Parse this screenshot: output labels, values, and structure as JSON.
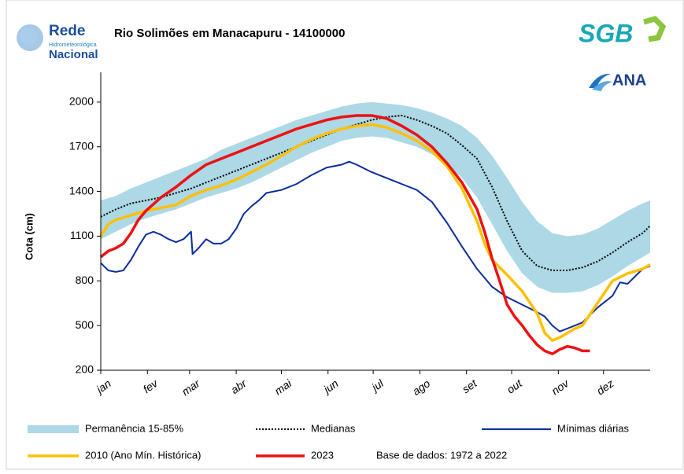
{
  "chart_data": {
    "type": "line",
    "title": "Rio Solimões em Manacapuru - 14100000",
    "ylabel": "Cota (cm)",
    "logos": {
      "rede": "Rede",
      "rede_sub": "Hidrometeorológica",
      "rede_bottom": "Nacional",
      "sgb": "SGB",
      "ana": "ANA"
    },
    "annotation": "Base de dados: 1972 a 2022",
    "xlim": [
      0,
      365
    ],
    "xticks": [
      {
        "value": 0,
        "label": "jan"
      },
      {
        "value": 31,
        "label": "fev"
      },
      {
        "value": 59,
        "label": "mar"
      },
      {
        "value": 90,
        "label": "abr"
      },
      {
        "value": 120,
        "label": "mai"
      },
      {
        "value": 151,
        "label": "jun"
      },
      {
        "value": 181,
        "label": "jul"
      },
      {
        "value": 212,
        "label": "ago"
      },
      {
        "value": 243,
        "label": "set"
      },
      {
        "value": 273,
        "label": "out"
      },
      {
        "value": 304,
        "label": "nov"
      },
      {
        "value": 334,
        "label": "dez"
      }
    ],
    "ylim": [
      200,
      2200
    ],
    "yticks": [
      200,
      500,
      800,
      1100,
      1400,
      1700,
      2000
    ],
    "series": [
      {
        "name": "Permanência 15-85%",
        "color": "#add8e6",
        "style": "band",
        "x": [
          0,
          10,
          20,
          30,
          40,
          50,
          60,
          70,
          80,
          90,
          100,
          110,
          120,
          130,
          140,
          150,
          160,
          170,
          180,
          190,
          200,
          210,
          220,
          230,
          240,
          250,
          260,
          270,
          280,
          290,
          300,
          310,
          320,
          330,
          340,
          350,
          360,
          365
        ],
        "low": [
          1080,
          1130,
          1180,
          1220,
          1250,
          1280,
          1320,
          1360,
          1390,
          1420,
          1460,
          1510,
          1560,
          1610,
          1660,
          1700,
          1740,
          1760,
          1770,
          1760,
          1730,
          1700,
          1650,
          1580,
          1490,
          1360,
          1180,
          1000,
          850,
          760,
          720,
          720,
          730,
          770,
          830,
          900,
          960,
          990
        ],
        "high": [
          1340,
          1370,
          1420,
          1460,
          1500,
          1540,
          1580,
          1620,
          1680,
          1720,
          1760,
          1800,
          1840,
          1880,
          1910,
          1940,
          1970,
          1990,
          2000,
          1990,
          1980,
          1960,
          1930,
          1890,
          1840,
          1760,
          1640,
          1490,
          1330,
          1200,
          1120,
          1100,
          1110,
          1150,
          1210,
          1270,
          1320,
          1340
        ]
      },
      {
        "name": "Medianas",
        "color": "#000000",
        "style": "dotted",
        "x": [
          0,
          10,
          20,
          30,
          40,
          50,
          60,
          70,
          80,
          90,
          100,
          110,
          120,
          130,
          140,
          150,
          160,
          170,
          180,
          190,
          200,
          210,
          220,
          230,
          240,
          250,
          260,
          270,
          280,
          290,
          300,
          310,
          320,
          330,
          340,
          350,
          360,
          365
        ],
        "values": [
          1230,
          1280,
          1320,
          1340,
          1360,
          1390,
          1420,
          1460,
          1500,
          1540,
          1580,
          1620,
          1660,
          1700,
          1740,
          1780,
          1820,
          1850,
          1880,
          1900,
          1910,
          1880,
          1840,
          1790,
          1710,
          1620,
          1430,
          1200,
          1000,
          900,
          870,
          870,
          890,
          930,
          990,
          1060,
          1120,
          1170
        ]
      },
      {
        "name": "Mínimas diárias",
        "color": "#0a2d9e",
        "style": "solid",
        "x": [
          0,
          5,
          10,
          15,
          20,
          25,
          30,
          35,
          40,
          45,
          50,
          55,
          60,
          61,
          65,
          70,
          75,
          80,
          85,
          90,
          95,
          100,
          105,
          110,
          120,
          130,
          140,
          150,
          160,
          165,
          170,
          180,
          190,
          200,
          210,
          220,
          230,
          240,
          250,
          260,
          270,
          280,
          290,
          295,
          300,
          305,
          310,
          320,
          330,
          340,
          345,
          350,
          355,
          360,
          365
        ],
        "values": [
          920,
          870,
          860,
          870,
          940,
          1030,
          1110,
          1130,
          1110,
          1080,
          1060,
          1080,
          1130,
          980,
          1020,
          1080,
          1050,
          1050,
          1080,
          1150,
          1250,
          1300,
          1340,
          1390,
          1410,
          1450,
          1510,
          1560,
          1580,
          1600,
          1580,
          1530,
          1490,
          1450,
          1410,
          1330,
          1190,
          1030,
          880,
          760,
          690,
          640,
          590,
          560,
          500,
          460,
          480,
          520,
          620,
          700,
          790,
          780,
          830,
          880,
          900
        ]
      },
      {
        "name": "2010 (Ano Mín. Histórica)",
        "color": "#ffc000",
        "style": "thick",
        "x": [
          0,
          5,
          10,
          20,
          30,
          40,
          50,
          60,
          70,
          80,
          90,
          100,
          110,
          120,
          130,
          140,
          150,
          160,
          170,
          180,
          190,
          200,
          210,
          220,
          230,
          240,
          250,
          255,
          260,
          270,
          280,
          290,
          295,
          300,
          305,
          310,
          315,
          320,
          330,
          340,
          350,
          360,
          365
        ],
        "values": [
          1100,
          1180,
          1210,
          1240,
          1270,
          1290,
          1310,
          1370,
          1410,
          1440,
          1480,
          1530,
          1580,
          1640,
          1700,
          1750,
          1790,
          1820,
          1840,
          1850,
          1830,
          1790,
          1740,
          1670,
          1570,
          1420,
          1200,
          1050,
          940,
          840,
          730,
          580,
          450,
          400,
          420,
          450,
          480,
          500,
          650,
          800,
          850,
          880,
          910
        ]
      },
      {
        "name": "2023",
        "color": "#ee1111",
        "style": "thick",
        "x": [
          0,
          5,
          10,
          15,
          20,
          25,
          30,
          40,
          50,
          60,
          70,
          80,
          90,
          100,
          110,
          120,
          130,
          140,
          150,
          160,
          170,
          180,
          190,
          200,
          210,
          220,
          230,
          240,
          250,
          255,
          260,
          265,
          270,
          275,
          280,
          285,
          290,
          295,
          300,
          305,
          310,
          315,
          320,
          325
        ],
        "values": [
          960,
          1000,
          1020,
          1050,
          1120,
          1210,
          1270,
          1360,
          1430,
          1510,
          1580,
          1620,
          1660,
          1700,
          1740,
          1780,
          1820,
          1850,
          1880,
          1900,
          1910,
          1910,
          1890,
          1840,
          1780,
          1700,
          1590,
          1460,
          1280,
          1130,
          950,
          800,
          640,
          560,
          500,
          430,
          370,
          330,
          310,
          340,
          360,
          350,
          330,
          330
        ]
      }
    ]
  }
}
